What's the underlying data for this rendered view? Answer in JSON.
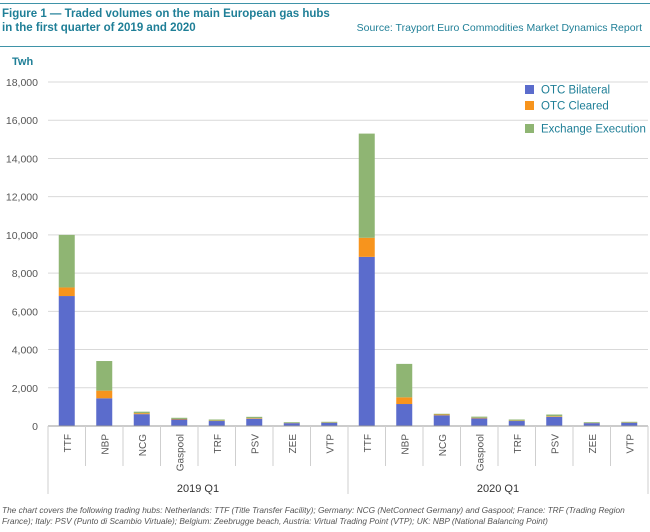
{
  "header": {
    "title": "Figure 1 — Traded volumes on the main European gas hubs in the first quarter of 2019 and 2020",
    "source": "Source: Trayport Euro Commodities Market Dynamics Report"
  },
  "footnote": "The chart covers the following trading hubs: Netherlands: TTF (Title Transfer Facility); Germany: NCG (NetConnect Germany) and Gaspool; France: TRF (Trading Region France); Italy: PSV (Punto di Scambio Virtuale); Belgium: Zeebrugge beach, Austria: Virtual Trading Point (VTP); UK: NBP (National Balancing Point)",
  "colors": {
    "accent": "#1f7f97",
    "OTC Bilateral": "#5b6ccc",
    "OTC Cleared": "#f7941d",
    "Exchange Execution": "#8fb573"
  },
  "chart_data": {
    "type": "bar",
    "stacked": true,
    "ylabel": "Twh",
    "xlabel": "",
    "ylim": [
      0,
      18000
    ],
    "yticks": [
      0,
      2000,
      4000,
      6000,
      8000,
      10000,
      12000,
      14000,
      16000,
      18000
    ],
    "ytick_labels": [
      "0",
      "2,000",
      "4,000",
      "6,000",
      "8,000",
      "10,000",
      "12,000",
      "14,000",
      "16,000",
      "18,000"
    ],
    "grid": true,
    "legend_position": "top-right",
    "groups": [
      {
        "label": "2019 Q1",
        "categories": [
          "TTF",
          "NBP",
          "NCG",
          "Gaspool",
          "TRF",
          "PSV",
          "ZEE",
          "VTP"
        ]
      },
      {
        "label": "2020 Q1",
        "categories": [
          "TTF",
          "NBP",
          "NCG",
          "Gaspool",
          "TRF",
          "PSV",
          "ZEE",
          "VTP"
        ]
      }
    ],
    "categories": [
      "TTF",
      "NBP",
      "NCG",
      "Gaspool",
      "TRF",
      "PSV",
      "ZEE",
      "VTP",
      "TTF",
      "NBP",
      "NCG",
      "Gaspool",
      "TRF",
      "PSV",
      "ZEE",
      "VTP"
    ],
    "series": [
      {
        "name": "OTC Bilateral",
        "values": [
          6800,
          1450,
          620,
          340,
          260,
          380,
          150,
          170,
          8850,
          1150,
          560,
          400,
          260,
          480,
          150,
          170
        ]
      },
      {
        "name": "OTC Cleared",
        "values": [
          450,
          400,
          50,
          30,
          20,
          30,
          10,
          10,
          1000,
          350,
          40,
          30,
          20,
          30,
          10,
          10
        ]
      },
      {
        "name": "Exchange Execution",
        "values": [
          2750,
          1550,
          80,
          60,
          60,
          70,
          40,
          40,
          5450,
          1750,
          40,
          60,
          60,
          90,
          40,
          40
        ]
      }
    ]
  }
}
